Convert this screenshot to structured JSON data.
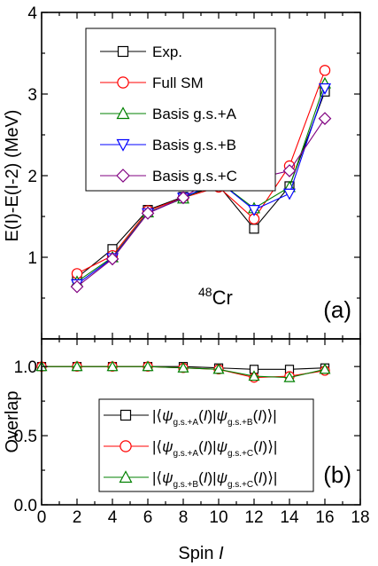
{
  "chart_data": [
    {
      "type": "line",
      "panel_label": "(a)",
      "annotation": {
        "mass_number": "48",
        "element": "Cr"
      },
      "ylabel": "E(I)-E(I-2) (MeV)",
      "xlabel": "",
      "xlim": [
        0,
        18
      ],
      "ylim": [
        0,
        4
      ],
      "x_ticks": [
        "0",
        "2",
        "4",
        "6",
        "8",
        "10",
        "12",
        "14",
        "16",
        "18"
      ],
      "y_ticks": [
        "1",
        "2",
        "3",
        "4"
      ],
      "x": [
        2,
        4,
        6,
        8,
        10,
        12,
        14,
        16
      ],
      "legend_position": "top-left",
      "series": [
        {
          "name": "Exp.",
          "marker": "square",
          "color": "#000000",
          "values": [
            0.75,
            1.1,
            1.58,
            1.74,
            1.88,
            1.35,
            1.87,
            3.03
          ]
        },
        {
          "name": "Full SM",
          "marker": "circle",
          "color": "#ff0000",
          "values": [
            0.8,
            1.02,
            1.57,
            1.73,
            1.86,
            1.47,
            2.12,
            3.29
          ]
        },
        {
          "name": "Basis g.s.+A",
          "marker": "triangle-up",
          "color": "#008000",
          "values": [
            0.7,
            1.0,
            1.55,
            1.72,
            1.93,
            1.6,
            1.86,
            3.13
          ]
        },
        {
          "name": "Basis g.s.+B",
          "marker": "triangle-down",
          "color": "#0000ff",
          "values": [
            0.67,
            0.99,
            1.54,
            1.73,
            1.93,
            1.58,
            1.78,
            3.07
          ]
        },
        {
          "name": "Basis g.s.+C",
          "marker": "diamond",
          "color": "#800080",
          "values": [
            0.64,
            0.98,
            1.54,
            1.73,
            2.01,
            1.96,
            2.06,
            2.7
          ]
        }
      ]
    },
    {
      "type": "line",
      "panel_label": "(b)",
      "ylabel": "Overlap",
      "xlabel": "Spin I",
      "xlim": [
        0,
        18
      ],
      "ylim": [
        0,
        1.2
      ],
      "x_ticks": [
        "0",
        "2",
        "4",
        "6",
        "8",
        "10",
        "12",
        "14",
        "16",
        "18"
      ],
      "y_ticks": [
        "0.0",
        "0.5",
        "1.0"
      ],
      "x": [
        0,
        2,
        4,
        6,
        8,
        10,
        12,
        14,
        16
      ],
      "legend_position": "bottom-right",
      "series": [
        {
          "name": "|⟨ψg.s.+A(I)|ψg.s.+B(I)⟩|",
          "marker": "square",
          "color": "#000000",
          "legend": {
            "left": "|⟨",
            "psi": "ψ",
            "sub1": "g.s.+A",
            "mid": "(I)|",
            "sub2": "g.s.+B",
            "right": "(I)⟩|"
          },
          "values": [
            1.0,
            1.0,
            1.0,
            1.0,
            1.0,
            0.99,
            0.98,
            0.98,
            0.99
          ]
        },
        {
          "name": "|⟨ψg.s.+A(I)|ψg.s.+C(I)⟩|",
          "marker": "circle",
          "color": "#ff0000",
          "legend": {
            "left": "|⟨",
            "psi": "ψ",
            "sub1": "g.s.+A",
            "mid": "(I)|",
            "sub2": "g.s.+C",
            "right": "(I)⟩|"
          },
          "values": [
            1.0,
            1.0,
            1.0,
            1.0,
            0.99,
            0.98,
            0.92,
            0.93,
            0.97
          ]
        },
        {
          "name": "|⟨ψg.s.+B(I)|ψg.s.+C(I)⟩|",
          "marker": "triangle-up",
          "color": "#008000",
          "legend": {
            "left": "|⟨",
            "psi": "ψ",
            "sub1": "g.s.+B",
            "mid": "(I)|",
            "sub2": "g.s.+C",
            "right": "(I)⟩|"
          },
          "values": [
            1.0,
            1.0,
            1.0,
            1.0,
            0.99,
            0.98,
            0.93,
            0.92,
            0.98
          ]
        }
      ]
    }
  ]
}
